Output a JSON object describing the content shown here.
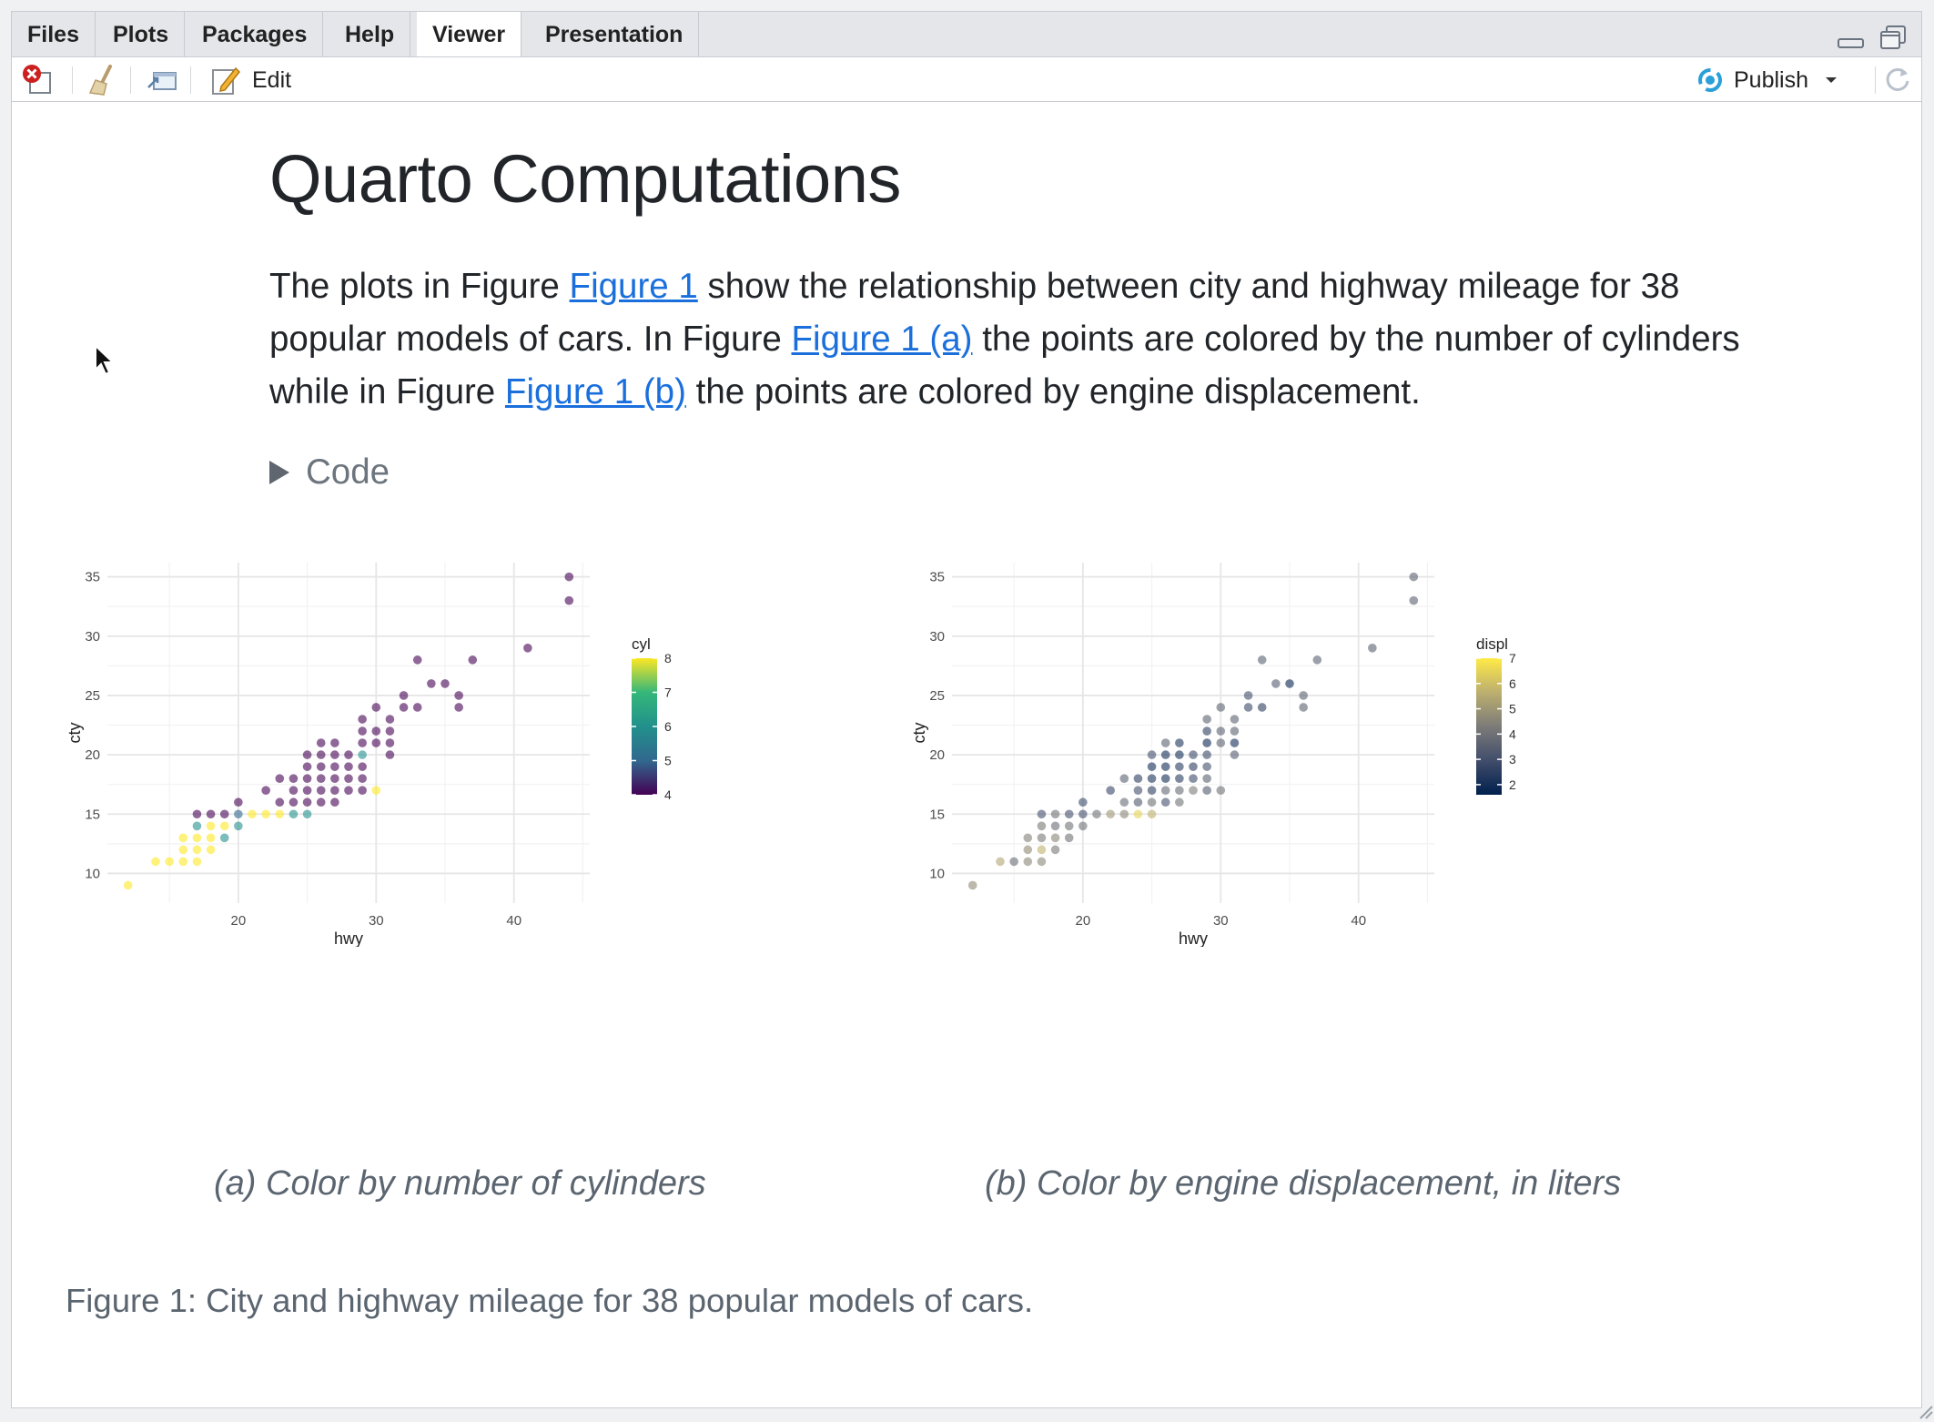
{
  "tabs": [
    {
      "label": "Files"
    },
    {
      "label": "Plots"
    },
    {
      "label": "Packages"
    },
    {
      "label": "Help"
    },
    {
      "label": "Viewer",
      "active": true
    },
    {
      "label": "Presentation"
    }
  ],
  "toolbar": {
    "edit_label": "Edit",
    "publish_label": "Publish",
    "icons": [
      "close-icon",
      "broom-icon",
      "show-in-window-icon",
      "edit-icon",
      "publish-icon",
      "chevron-down-icon",
      "refresh-icon"
    ]
  },
  "document": {
    "title": "Quarto Computations",
    "para": {
      "t1": "The plots in Figure ",
      "link1": "Figure 1",
      "t2": " show the relationship between city and highway mileage for 38 popular models of cars. In Figure ",
      "link2": "Figure 1 (a)",
      "t3": " the points are colored by the number of cylinders while in Figure ",
      "link3": "Figure 1 (b)",
      "t4": " the points are colored by engine displacement."
    },
    "code_toggle": "Code",
    "subcaption_a": "(a) Color by number of cylinders",
    "subcaption_b": "(b) Color by engine displacement, in liters",
    "figure_caption": "Figure 1: City and highway mileage for 38 popular models of cars."
  },
  "colors": {
    "link": "#1a6fdc",
    "caption": "#5b6570",
    "viridis": [
      "#440154",
      "#31688e",
      "#21918c",
      "#35b779",
      "#fde725"
    ],
    "cividis": [
      "#00204d",
      "#414d6b",
      "#7c7b78",
      "#bcaf6f",
      "#ffea46"
    ]
  },
  "chart_data": [
    {
      "type": "scatter",
      "title": "",
      "xlabel": "hwy",
      "ylabel": "cty",
      "xlim": [
        12,
        44
      ],
      "ylim": [
        9,
        35
      ],
      "xticks": [
        20,
        30,
        40
      ],
      "yticks": [
        10,
        15,
        20,
        25,
        30,
        35
      ],
      "grid": true,
      "legend": {
        "title": "cyl",
        "ticks": [
          4,
          5,
          6,
          7,
          8
        ],
        "range": [
          4,
          8
        ],
        "palette": "viridis",
        "placement": "right"
      },
      "points": [
        [
          12,
          9,
          8
        ],
        [
          14,
          11,
          8
        ],
        [
          15,
          11,
          8
        ],
        [
          16,
          11,
          8
        ],
        [
          17,
          11,
          8
        ],
        [
          16,
          12,
          8
        ],
        [
          17,
          12,
          8
        ],
        [
          18,
          12,
          8
        ],
        [
          16,
          13,
          8
        ],
        [
          17,
          13,
          8
        ],
        [
          18,
          13,
          8
        ],
        [
          19,
          13,
          6
        ],
        [
          17,
          14,
          6
        ],
        [
          18,
          14,
          8
        ],
        [
          19,
          14,
          8
        ],
        [
          20,
          14,
          6
        ],
        [
          17,
          15,
          4
        ],
        [
          18,
          15,
          4
        ],
        [
          19,
          15,
          4
        ],
        [
          20,
          15,
          5
        ],
        [
          21,
          15,
          8
        ],
        [
          22,
          15,
          8
        ],
        [
          23,
          15,
          8
        ],
        [
          24,
          15,
          6
        ],
        [
          25,
          15,
          6
        ],
        [
          20,
          16,
          4
        ],
        [
          23,
          16,
          4
        ],
        [
          24,
          16,
          4
        ],
        [
          25,
          16,
          4
        ],
        [
          26,
          16,
          4
        ],
        [
          27,
          16,
          4
        ],
        [
          22,
          17,
          4
        ],
        [
          24,
          17,
          4
        ],
        [
          25,
          17,
          4
        ],
        [
          26,
          17,
          4
        ],
        [
          27,
          17,
          4
        ],
        [
          28,
          17,
          4
        ],
        [
          29,
          17,
          4
        ],
        [
          30,
          17,
          8
        ],
        [
          23,
          18,
          4
        ],
        [
          24,
          18,
          4
        ],
        [
          25,
          18,
          4
        ],
        [
          26,
          18,
          4
        ],
        [
          27,
          18,
          4
        ],
        [
          28,
          18,
          4
        ],
        [
          29,
          18,
          4
        ],
        [
          25,
          19,
          4
        ],
        [
          26,
          19,
          4
        ],
        [
          27,
          19,
          4
        ],
        [
          28,
          19,
          4
        ],
        [
          29,
          19,
          4
        ],
        [
          25,
          20,
          4
        ],
        [
          26,
          20,
          4
        ],
        [
          27,
          20,
          4
        ],
        [
          28,
          20,
          4
        ],
        [
          29,
          20,
          6
        ],
        [
          31,
          20,
          4
        ],
        [
          26,
          21,
          4
        ],
        [
          27,
          21,
          4
        ],
        [
          29,
          21,
          4
        ],
        [
          30,
          21,
          4
        ],
        [
          31,
          21,
          4
        ],
        [
          29,
          22,
          4
        ],
        [
          30,
          22,
          4
        ],
        [
          31,
          22,
          4
        ],
        [
          29,
          23,
          4
        ],
        [
          31,
          23,
          4
        ],
        [
          30,
          24,
          4
        ],
        [
          32,
          24,
          4
        ],
        [
          33,
          24,
          4
        ],
        [
          36,
          24,
          4
        ],
        [
          32,
          25,
          4
        ],
        [
          36,
          25,
          4
        ],
        [
          34,
          26,
          4
        ],
        [
          35,
          26,
          4
        ],
        [
          33,
          28,
          4
        ],
        [
          37,
          28,
          4
        ],
        [
          41,
          29,
          4
        ],
        [
          44,
          33,
          4
        ],
        [
          44,
          35,
          4
        ]
      ]
    },
    {
      "type": "scatter",
      "title": "",
      "xlabel": "hwy",
      "ylabel": "cty",
      "xlim": [
        12,
        44
      ],
      "ylim": [
        9,
        35
      ],
      "xticks": [
        20,
        30,
        40
      ],
      "yticks": [
        10,
        15,
        20,
        25,
        30,
        35
      ],
      "grid": true,
      "legend": {
        "title": "displ",
        "ticks": [
          2,
          3,
          4,
          5,
          6,
          7
        ],
        "range": [
          1.6,
          7.0
        ],
        "palette": "cividis",
        "placement": "right"
      },
      "points": [
        [
          12,
          9,
          4.7
        ],
        [
          14,
          11,
          5.4
        ],
        [
          15,
          11,
          3.8
        ],
        [
          16,
          11,
          4.6
        ],
        [
          17,
          11,
          4.6
        ],
        [
          16,
          12,
          4.7
        ],
        [
          17,
          12,
          5.7
        ],
        [
          18,
          12,
          4.2
        ],
        [
          16,
          13,
          4.4
        ],
        [
          17,
          13,
          4.2
        ],
        [
          18,
          13,
          4.6
        ],
        [
          19,
          13,
          4.0
        ],
        [
          17,
          14,
          4.2
        ],
        [
          18,
          14,
          3.9
        ],
        [
          19,
          14,
          4.0
        ],
        [
          20,
          14,
          4.0
        ],
        [
          17,
          15,
          3.0
        ],
        [
          18,
          15,
          4.0
        ],
        [
          19,
          15,
          3.0
        ],
        [
          20,
          15,
          3.0
        ],
        [
          21,
          15,
          4.0
        ],
        [
          22,
          15,
          5.0
        ],
        [
          23,
          15,
          4.6
        ],
        [
          24,
          15,
          6.5
        ],
        [
          25,
          15,
          5.7
        ],
        [
          20,
          16,
          2.8
        ],
        [
          23,
          16,
          3.8
        ],
        [
          24,
          16,
          3.3
        ],
        [
          25,
          16,
          4.0
        ],
        [
          26,
          16,
          3.0
        ],
        [
          27,
          16,
          4.0
        ],
        [
          22,
          17,
          2.7
        ],
        [
          24,
          17,
          3.0
        ],
        [
          25,
          17,
          2.5
        ],
        [
          26,
          17,
          3.7
        ],
        [
          27,
          17,
          3.8
        ],
        [
          28,
          17,
          4.3
        ],
        [
          29,
          17,
          3.3
        ],
        [
          30,
          17,
          4.0
        ],
        [
          23,
          18,
          3.5
        ],
        [
          24,
          18,
          2.5
        ],
        [
          25,
          18,
          2.2
        ],
        [
          26,
          18,
          2.0
        ],
        [
          27,
          18,
          2.4
        ],
        [
          28,
          18,
          2.8
        ],
        [
          29,
          18,
          3.5
        ],
        [
          25,
          19,
          2.0
        ],
        [
          26,
          19,
          2.0
        ],
        [
          27,
          19,
          2.4
        ],
        [
          28,
          19,
          2.5
        ],
        [
          29,
          19,
          3.0
        ],
        [
          25,
          20,
          3.0
        ],
        [
          26,
          20,
          2.0
        ],
        [
          27,
          20,
          2.0
        ],
        [
          28,
          20,
          2.8
        ],
        [
          29,
          20,
          2.8
        ],
        [
          31,
          20,
          3.4
        ],
        [
          26,
          21,
          3.5
        ],
        [
          27,
          21,
          2.2
        ],
        [
          29,
          21,
          1.8
        ],
        [
          30,
          21,
          3.5
        ],
        [
          31,
          21,
          2.0
        ],
        [
          29,
          22,
          2.5
        ],
        [
          30,
          22,
          3.5
        ],
        [
          31,
          22,
          3.5
        ],
        [
          29,
          23,
          3.5
        ],
        [
          31,
          23,
          3.5
        ],
        [
          30,
          24,
          3.5
        ],
        [
          32,
          24,
          2.8
        ],
        [
          33,
          24,
          2.5
        ],
        [
          36,
          24,
          3.5
        ],
        [
          32,
          25,
          3.0
        ],
        [
          36,
          25,
          3.5
        ],
        [
          34,
          26,
          3.4
        ],
        [
          35,
          26,
          1.8
        ],
        [
          33,
          28,
          3.5
        ],
        [
          37,
          28,
          3.5
        ],
        [
          41,
          29,
          3.5
        ],
        [
          44,
          33,
          3.5
        ],
        [
          44,
          35,
          3.5
        ]
      ]
    }
  ]
}
